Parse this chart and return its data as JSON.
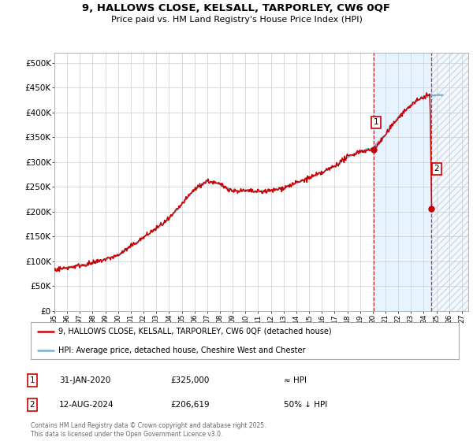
{
  "title_line1": "9, HALLOWS CLOSE, KELSALL, TARPORLEY, CW6 0QF",
  "title_line2": "Price paid vs. HM Land Registry's House Price Index (HPI)",
  "ylim": [
    0,
    520000
  ],
  "ytick_labels": [
    "£0",
    "£50K",
    "£100K",
    "£150K",
    "£200K",
    "£250K",
    "£300K",
    "£350K",
    "£400K",
    "£450K",
    "£500K"
  ],
  "xlim_start": 1995.0,
  "xlim_end": 2027.5,
  "house_color": "#cc0000",
  "hpi_color": "#7ab0d4",
  "point1_x": 2020.08,
  "point1_y": 325000,
  "point2_x": 2024.62,
  "point2_y": 206619,
  "legend_house": "9, HALLOWS CLOSE, KELSALL, TARPORLEY, CW6 0QF (detached house)",
  "legend_hpi": "HPI: Average price, detached house, Cheshire West and Chester",
  "annotation1_date": "31-JAN-2020",
  "annotation1_price": "£325,000",
  "annotation1_hpi": "≈ HPI",
  "annotation2_date": "12-AUG-2024",
  "annotation2_price": "£206,619",
  "annotation2_hpi": "50% ↓ HPI",
  "footer": "Contains HM Land Registry data © Crown copyright and database right 2025.\nThis data is licensed under the Open Government Licence v3.0.",
  "background_color": "#ffffff",
  "grid_color": "#cccccc",
  "shade_color": "#ddeeff",
  "hatch_color": "#cccccc",
  "vline_color": "#cc0000"
}
